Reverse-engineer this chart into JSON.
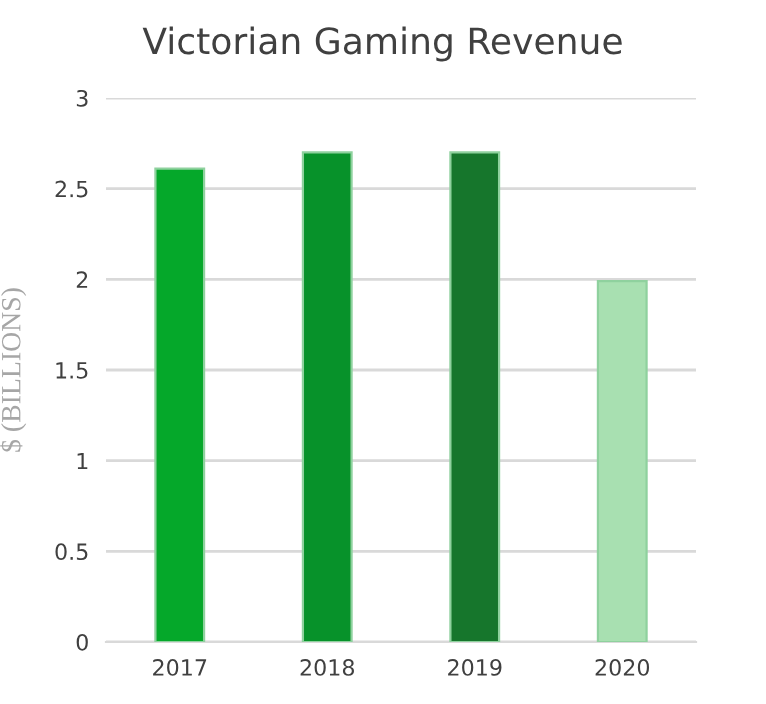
{
  "chart_data": {
    "type": "bar",
    "title": "Victorian Gaming Revenue",
    "ylabel": "$ (BILLIONS)",
    "categories": [
      "2017",
      "2018",
      "2019",
      "2020"
    ],
    "values": [
      2.61,
      2.7,
      2.7,
      1.99
    ],
    "colors": [
      "#05a82a",
      "#07922a",
      "#16762c",
      "#a8e0b1"
    ],
    "ylim": [
      0,
      3
    ],
    "yticks": [
      0,
      0.5,
      1,
      1.5,
      2,
      2.5,
      3
    ],
    "grid": "y",
    "legend": false
  }
}
